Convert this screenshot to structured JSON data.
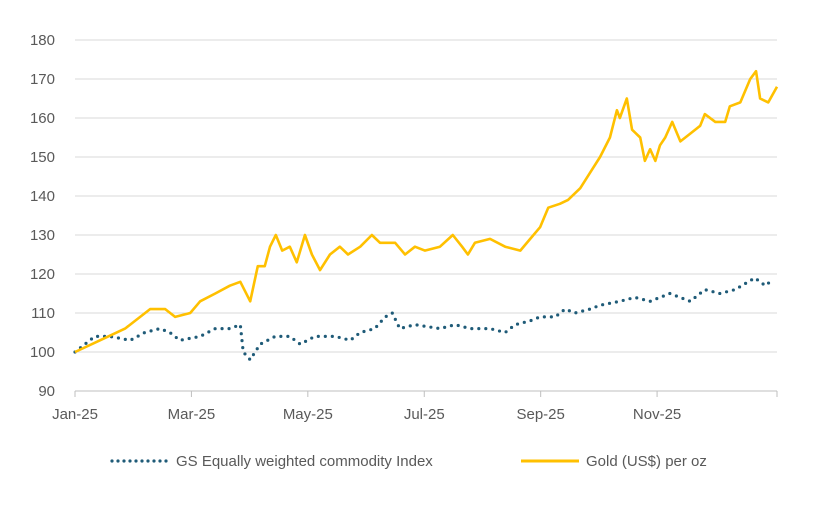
{
  "chart_data": {
    "type": "line",
    "title": "",
    "xlabel": "",
    "ylabel": "",
    "ylim": [
      90,
      180
    ],
    "yticks": [
      90,
      100,
      110,
      120,
      130,
      140,
      150,
      160,
      170,
      180
    ],
    "xlim_months": [
      0,
      12.06
    ],
    "xticks": [
      {
        "label": "Jan-25",
        "m": 0
      },
      {
        "label": "Mar-25",
        "m": 2
      },
      {
        "label": "May-25",
        "m": 4
      },
      {
        "label": "Jul-25",
        "m": 6
      },
      {
        "label": "Sep-25",
        "m": 8
      },
      {
        "label": "Nov-25",
        "m": 10
      }
    ],
    "grid": true,
    "legend": "bottom",
    "series": [
      {
        "name": "GS Equally weighted commodity Index",
        "color": "#1f5b78",
        "style": "dotted",
        "x": [
          0,
          0.17,
          0.34,
          0.6,
          0.95,
          1.2,
          1.46,
          1.63,
          1.8,
          2.15,
          2.41,
          2.66,
          2.84,
          2.89,
          3.01,
          3.18,
          3.44,
          3.69,
          3.87,
          4.12,
          4.47,
          4.73,
          4.9,
          5.15,
          5.33,
          5.45,
          5.58,
          5.84,
          6.27,
          6.53,
          6.79,
          7.13,
          7.39,
          7.56,
          7.82,
          7.99,
          8.25,
          8.42,
          8.59,
          8.85,
          9.02,
          9.36,
          9.62,
          9.88,
          10.22,
          10.57,
          10.82,
          11.08,
          11.34,
          11.68,
          11.86,
          11.94
        ],
        "y": [
          100,
          102,
          104,
          104,
          103,
          105,
          106,
          105,
          103,
          104,
          106,
          106,
          107,
          100,
          98,
          102,
          104,
          104,
          102,
          104,
          104,
          103,
          105,
          106,
          109,
          110,
          106,
          107,
          106,
          107,
          106,
          106,
          105,
          107,
          108,
          109,
          109,
          111,
          110,
          111,
          112,
          113,
          114,
          113,
          115,
          113,
          116,
          115,
          116,
          119,
          117,
          118
        ]
      },
      {
        "name": "Gold (US$) per oz",
        "color": "#ffc000",
        "style": "solid",
        "x": [
          0,
          0.43,
          0.86,
          1.29,
          1.55,
          1.72,
          1.98,
          2.15,
          2.41,
          2.66,
          2.84,
          3.01,
          3.14,
          3.26,
          3.35,
          3.45,
          3.56,
          3.69,
          3.81,
          3.95,
          4.07,
          4.21,
          4.38,
          4.55,
          4.69,
          4.9,
          5.1,
          5.24,
          5.5,
          5.67,
          5.84,
          6.01,
          6.27,
          6.49,
          6.65,
          6.75,
          6.87,
          7.13,
          7.39,
          7.65,
          7.82,
          7.99,
          8.13,
          8.33,
          8.47,
          8.68,
          8.85,
          9.02,
          9.19,
          9.31,
          9.36,
          9.48,
          9.57,
          9.71,
          9.79,
          9.88,
          9.97,
          10.05,
          10.14,
          10.26,
          10.4,
          10.57,
          10.74,
          10.82,
          11.0,
          11.17,
          11.25,
          11.43,
          11.6,
          11.7,
          11.77,
          11.91,
          12.06
        ],
        "y": [
          100,
          103,
          106,
          111,
          111,
          109,
          110,
          113,
          115,
          117,
          118,
          113,
          122,
          122,
          127,
          130,
          126,
          127,
          123,
          130,
          125,
          121,
          125,
          127,
          125,
          127,
          130,
          128,
          128,
          125,
          127,
          126,
          127,
          130,
          127,
          125,
          128,
          129,
          127,
          126,
          129,
          132,
          137,
          138,
          139,
          142,
          146,
          150,
          155,
          162,
          160,
          165,
          157,
          155,
          149,
          152,
          149,
          153,
          155,
          159,
          154,
          156,
          158,
          161,
          159,
          159,
          163,
          164,
          170,
          172,
          165,
          164,
          168
        ]
      }
    ]
  }
}
